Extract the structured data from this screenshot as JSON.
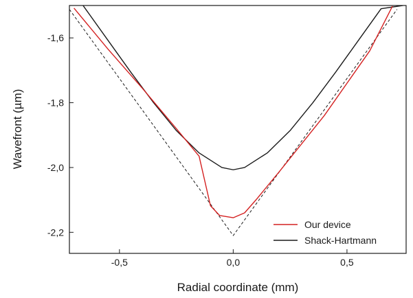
{
  "chart_data": {
    "type": "line",
    "xlabel": "Radial coordinate (mm)",
    "ylabel": "Wavefront (µm)",
    "xlim": [
      -0.72,
      0.76
    ],
    "ylim": [
      -2.265,
      -1.5
    ],
    "xticks": [
      {
        "value": -0.5,
        "label": "-0,5"
      },
      {
        "value": 0.0,
        "label": "0,0"
      },
      {
        "value": 0.5,
        "label": "0,5"
      }
    ],
    "yticks": [
      {
        "value": -1.6,
        "label": "-1,6"
      },
      {
        "value": -1.8,
        "label": "-1,8"
      },
      {
        "value": -2.0,
        "label": "-2,0"
      },
      {
        "value": -2.2,
        "label": "-2,2"
      }
    ],
    "legend_position": "bottom-right",
    "series": [
      {
        "name": "Our device",
        "color": "#d42020",
        "dash": "solid",
        "x": [
          -0.7,
          -0.55,
          -0.4,
          -0.25,
          -0.15,
          -0.1,
          -0.06,
          0.0,
          0.05,
          0.1,
          0.2,
          0.4,
          0.6,
          0.7
        ],
        "y": [
          -1.508,
          -1.635,
          -1.755,
          -1.88,
          -1.965,
          -2.118,
          -2.148,
          -2.155,
          -2.14,
          -2.1,
          -2.015,
          -1.84,
          -1.64,
          -1.502
        ]
      },
      {
        "name": "Shack-Hartmann",
        "color": "#1a1a1a",
        "dash": "solid",
        "x": [
          -0.66,
          -0.55,
          -0.45,
          -0.35,
          -0.25,
          -0.15,
          -0.05,
          0.0,
          0.05,
          0.15,
          0.25,
          0.35,
          0.45,
          0.55,
          0.65,
          0.745
        ],
        "y": [
          -1.5,
          -1.608,
          -1.706,
          -1.8,
          -1.886,
          -1.955,
          -2.0,
          -2.007,
          -2.0,
          -1.955,
          -1.886,
          -1.8,
          -1.706,
          -1.608,
          -1.51,
          -1.5
        ]
      },
      {
        "name": "",
        "color": "#1a1a1a",
        "dash": "dashed",
        "x": [
          -0.72,
          0.0,
          0.72
        ],
        "y": [
          -1.512,
          -2.21,
          -1.512
        ]
      }
    ]
  }
}
